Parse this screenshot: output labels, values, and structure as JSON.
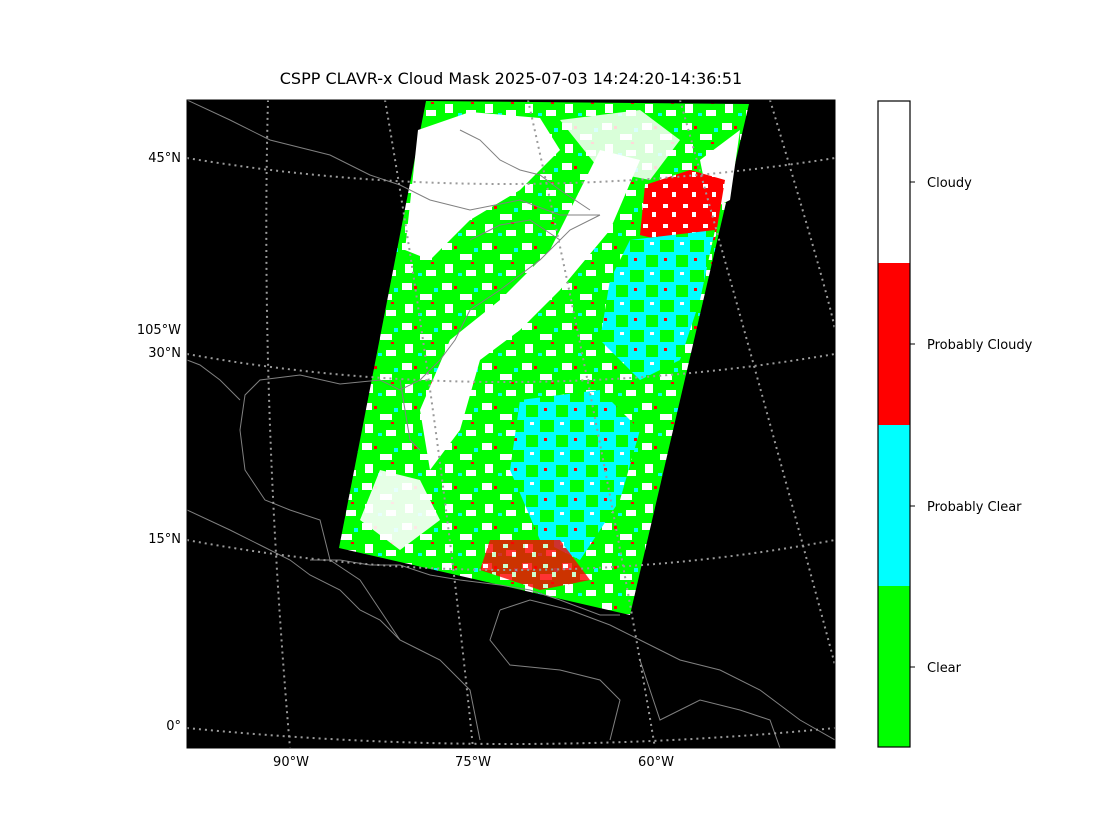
{
  "title": "CSPP CLAVR-x Cloud Mask 2025-07-03 14:24:20-14:36:51",
  "lat_labels": [
    "45°N",
    "30°N",
    "15°N",
    "0°"
  ],
  "lon_labels_left": [
    "105°W"
  ],
  "lon_labels_bottom": [
    "90°W",
    "75°W",
    "60°W"
  ],
  "colorbar": {
    "classes": [
      {
        "label": "Cloudy",
        "color": "#ffffff"
      },
      {
        "label": "Probably Cloudy",
        "color": "#ff0000"
      },
      {
        "label": "Probably Clear",
        "color": "#00ffff"
      },
      {
        "label": "Clear",
        "color": "#00ff00"
      }
    ]
  },
  "colors": {
    "background": "#000000",
    "coastline": "#808080",
    "gridline": "#9a9a9a"
  }
}
